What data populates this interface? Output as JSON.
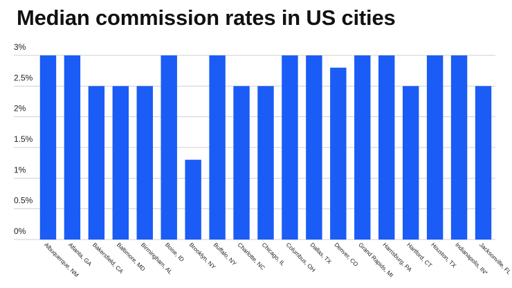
{
  "chart_data": {
    "type": "bar",
    "title": "Median commission rates in US cities",
    "xlabel": "",
    "ylabel": "",
    "ylim": [
      0,
      3
    ],
    "yticks": [
      "0%",
      "0.5%",
      "1%",
      "1.5%",
      "2%",
      "2.5%",
      "3%"
    ],
    "grid": true,
    "bar_color": "#1a5cf5",
    "grid_color": "#cfcfcf",
    "categories": [
      "Albuquerque, NM",
      "Atlanta, GA",
      "Bakersfield, CA",
      "Baltimore, MD",
      "Birmingham, AL",
      "Boise, ID",
      "Brooklyn, NY",
      "Buffalo, NY",
      "Charlotte, NC",
      "Chicago, IL",
      "Columbus, OH",
      "Dallas, TX",
      "Denver, CO",
      "Grand Rapids, MI",
      "Harrisburg, PA",
      "Hartford, CT",
      "Houston, TX",
      "Indianapolis, IN*",
      "Jacksonville, FL"
    ],
    "values": [
      3,
      3,
      2.5,
      2.5,
      2.5,
      3,
      1.3,
      3,
      2.5,
      2.5,
      3,
      3,
      2.8,
      3,
      3,
      2.5,
      3,
      3,
      2.5
    ]
  }
}
